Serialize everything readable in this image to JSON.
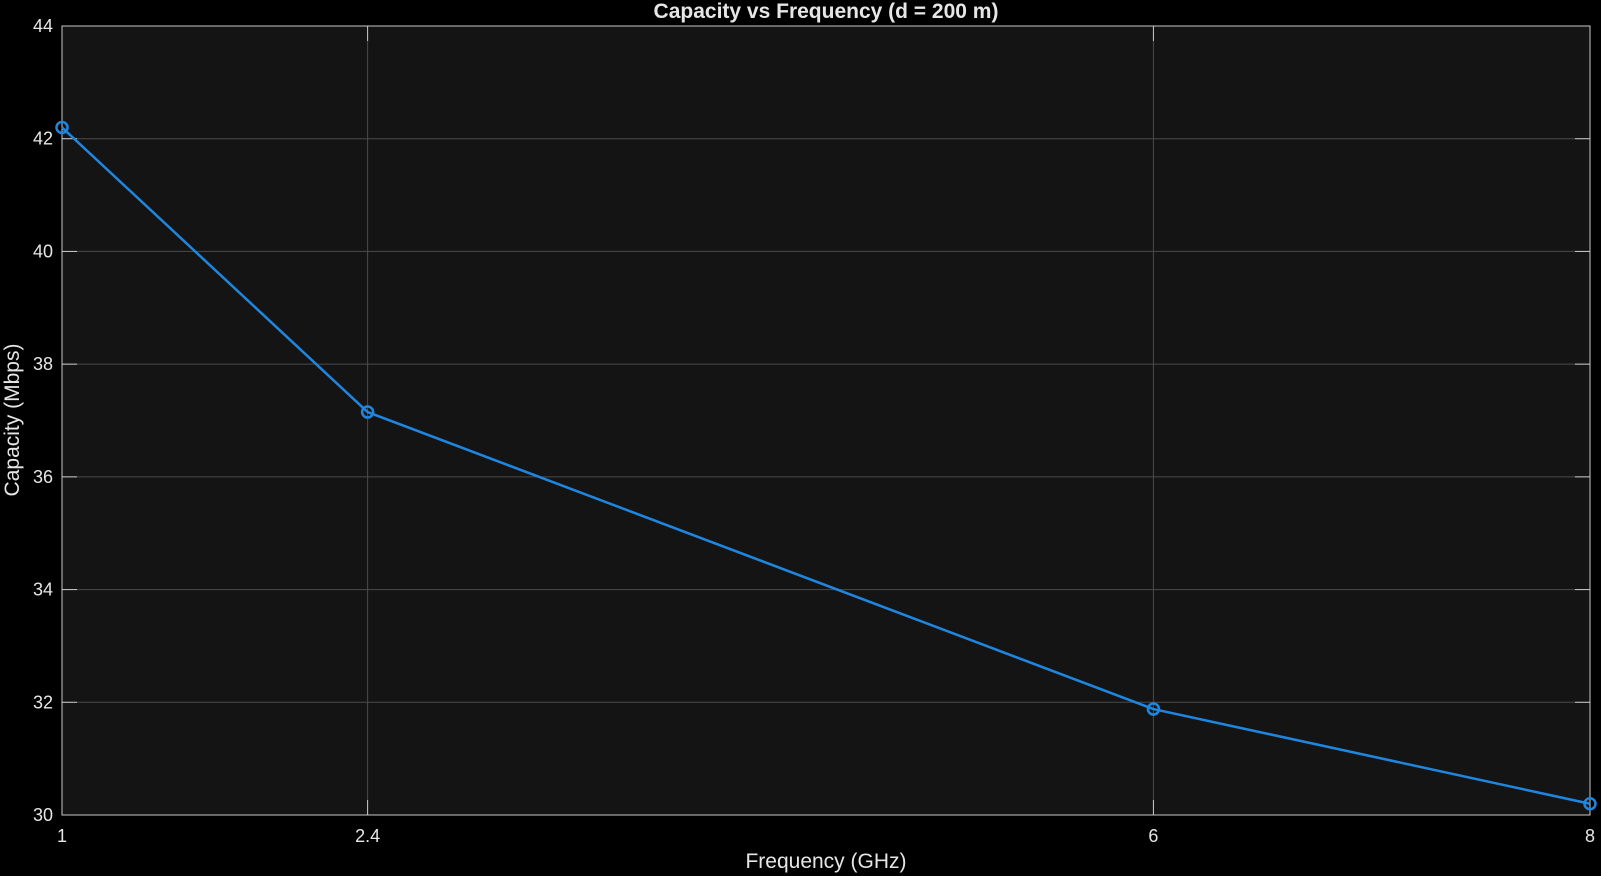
{
  "chart_data": {
    "type": "line",
    "title": "Capacity vs Frequency (d = 200 m)",
    "xlabel": "Frequency (GHz)",
    "ylabel": "Capacity (Mbps)",
    "xlim": [
      1,
      8
    ],
    "ylim": [
      30,
      44
    ],
    "xticks": [
      1,
      2.4,
      6,
      8
    ],
    "yticks": [
      30,
      32,
      34,
      36,
      38,
      40,
      42,
      44
    ],
    "grid": true,
    "series": [
      {
        "x": [
          1,
          2.4,
          6,
          8
        ],
        "values": [
          42.2,
          37.15,
          31.88,
          30.2
        ],
        "color": "#1f86e0",
        "marker": "circle"
      }
    ],
    "colors": {
      "figure_background": "#000000",
      "axes_background": "#141414",
      "grid": "#4a4a4a",
      "axis_line": "#c8c8c8",
      "text": "#e6e6e6"
    }
  }
}
